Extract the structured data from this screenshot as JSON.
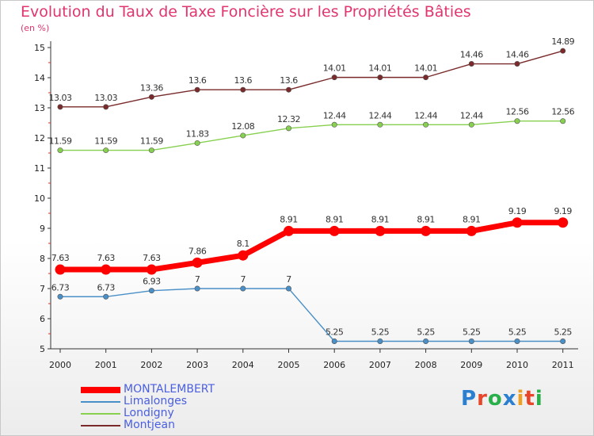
{
  "chart_data": {
    "type": "line",
    "title": "Evolution du Taux de Taxe Foncière sur les Propriétés Bâties",
    "subtitle": "(en %)",
    "x": [
      "2000",
      "2001",
      "2002",
      "2003",
      "2004",
      "2005",
      "2006",
      "2007",
      "2008",
      "2009",
      "2010",
      "2011"
    ],
    "ylim": [
      5,
      15
    ],
    "yticks": [
      5,
      6,
      7,
      8,
      9,
      10,
      11,
      12,
      13,
      14,
      15
    ],
    "legend_position": "bottom-left",
    "series": [
      {
        "name": "MONTALEMBERT",
        "color": "#ff0000",
        "values": [
          7.63,
          7.63,
          7.63,
          7.86,
          8.1,
          8.91,
          8.91,
          8.91,
          8.91,
          8.91,
          9.19,
          9.19
        ],
        "labels": [
          "7.63",
          "7.63",
          "7.63",
          "7.86",
          "8.1",
          "8.91",
          "8.91",
          "8.91",
          "8.91",
          "8.91",
          "9.19",
          "9.19"
        ]
      },
      {
        "name": "Limalonges",
        "color": "#4a90c8",
        "values": [
          6.73,
          6.73,
          6.93,
          7,
          7,
          7,
          5.25,
          5.25,
          5.25,
          5.25,
          5.25,
          5.25
        ],
        "labels": [
          "6.73",
          "6.73",
          "6.93",
          "7",
          "7",
          "7",
          "5.25",
          "5.25",
          "5.25",
          "5.25",
          "5.25",
          "5.25"
        ]
      },
      {
        "name": "Londigny",
        "color": "#88d050",
        "values": [
          11.59,
          11.59,
          11.59,
          11.83,
          12.08,
          12.32,
          12.44,
          12.44,
          12.44,
          12.44,
          12.56,
          12.56
        ],
        "labels": [
          "11.59",
          "11.59",
          "11.59",
          "11.83",
          "12.08",
          "12.32",
          "12.44",
          "12.44",
          "12.44",
          "12.44",
          "12.56",
          "12.56"
        ]
      },
      {
        "name": "Montjean",
        "color": "#7a2a2a",
        "values": [
          13.03,
          13.03,
          13.36,
          13.6,
          13.6,
          13.6,
          14.01,
          14.01,
          14.01,
          14.46,
          14.46,
          14.89
        ],
        "labels": [
          "13.03",
          "13.03",
          "13.36",
          "13.6",
          "13.6",
          "13.6",
          "14.01",
          "14.01",
          "14.01",
          "14.46",
          "14.46",
          "14.89"
        ]
      }
    ]
  },
  "logo": {
    "text": "Proxiti",
    "letter_colors": [
      "#2a7fd0",
      "#e8462a",
      "#2ab04a",
      "#2a7fd0",
      "#f0a020",
      "#e8462a",
      "#2ab04a"
    ]
  }
}
